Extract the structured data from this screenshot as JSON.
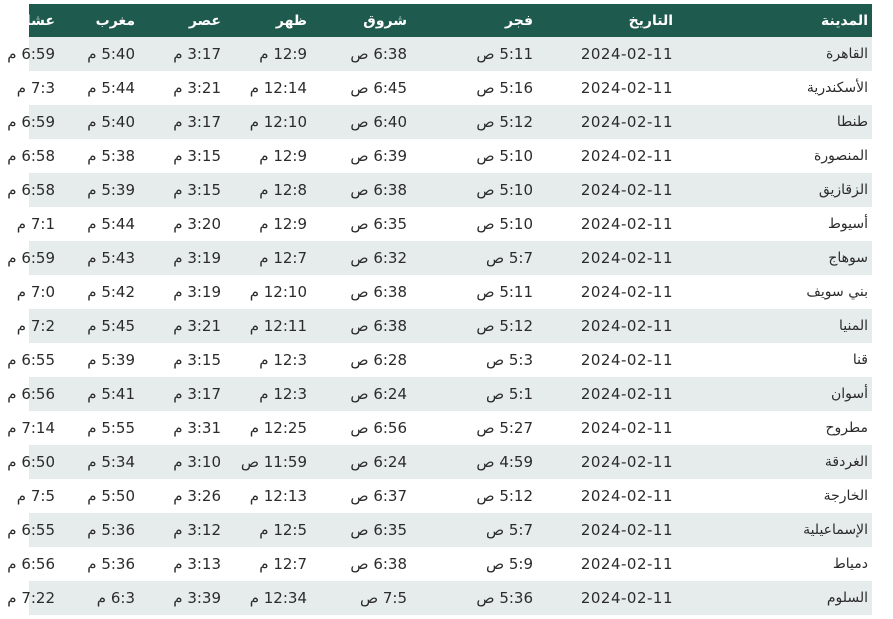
{
  "headers": {
    "city": "المدينة",
    "date": "التاريخ",
    "fajr": "فجر",
    "shuruq": "شروق",
    "dhuhr": "ظهر",
    "asr": "عصر",
    "maghrib": "مغرب",
    "isha": "عشاء"
  },
  "rows": [
    {
      "city": "القاهرة",
      "date": "2024-02-11",
      "fajr": "5:11 ص",
      "shuruq": "6:38 ص",
      "dhuhr": "12:9 م",
      "asr": "3:17 م",
      "maghrib": "5:40 م",
      "isha": "6:59 م"
    },
    {
      "city": "الأسكندرية",
      "date": "2024-02-11",
      "fajr": "5:16 ص",
      "shuruq": "6:45 ص",
      "dhuhr": "12:14 م",
      "asr": "3:21 م",
      "maghrib": "5:44 م",
      "isha": "7:3 م"
    },
    {
      "city": "طنطا",
      "date": "2024-02-11",
      "fajr": "5:12 ص",
      "shuruq": "6:40 ص",
      "dhuhr": "12:10 م",
      "asr": "3:17 م",
      "maghrib": "5:40 م",
      "isha": "6:59 م"
    },
    {
      "city": "المنصورة",
      "date": "2024-02-11",
      "fajr": "5:10 ص",
      "shuruq": "6:39 ص",
      "dhuhr": "12:9 م",
      "asr": "3:15 م",
      "maghrib": "5:38 م",
      "isha": "6:58 م"
    },
    {
      "city": "الزقازيق",
      "date": "2024-02-11",
      "fajr": "5:10 ص",
      "shuruq": "6:38 ص",
      "dhuhr": "12:8 م",
      "asr": "3:15 م",
      "maghrib": "5:39 م",
      "isha": "6:58 م"
    },
    {
      "city": "أسيوط",
      "date": "2024-02-11",
      "fajr": "5:10 ص",
      "shuruq": "6:35 ص",
      "dhuhr": "12:9 م",
      "asr": "3:20 م",
      "maghrib": "5:44 م",
      "isha": "7:1 م"
    },
    {
      "city": "سوهاج",
      "date": "2024-02-11",
      "fajr": "5:7 ص",
      "shuruq": "6:32 ص",
      "dhuhr": "12:7 م",
      "asr": "3:19 م",
      "maghrib": "5:43 م",
      "isha": "6:59 م"
    },
    {
      "city": "بني سويف",
      "date": "2024-02-11",
      "fajr": "5:11 ص",
      "shuruq": "6:38 ص",
      "dhuhr": "12:10 م",
      "asr": "3:19 م",
      "maghrib": "5:42 م",
      "isha": "7:0 م"
    },
    {
      "city": "المنيا",
      "date": "2024-02-11",
      "fajr": "5:12 ص",
      "shuruq": "6:38 ص",
      "dhuhr": "12:11 م",
      "asr": "3:21 م",
      "maghrib": "5:45 م",
      "isha": "7:2 م"
    },
    {
      "city": "قنا",
      "date": "2024-02-11",
      "fajr": "5:3 ص",
      "shuruq": "6:28 ص",
      "dhuhr": "12:3 م",
      "asr": "3:15 م",
      "maghrib": "5:39 م",
      "isha": "6:55 م"
    },
    {
      "city": "أسوان",
      "date": "2024-02-11",
      "fajr": "5:1 ص",
      "shuruq": "6:24 ص",
      "dhuhr": "12:3 م",
      "asr": "3:17 م",
      "maghrib": "5:41 م",
      "isha": "6:56 م"
    },
    {
      "city": "مطروح",
      "date": "2024-02-11",
      "fajr": "5:27 ص",
      "shuruq": "6:56 ص",
      "dhuhr": "12:25 م",
      "asr": "3:31 م",
      "maghrib": "5:55 م",
      "isha": "7:14 م"
    },
    {
      "city": "الغردقة",
      "date": "2024-02-11",
      "fajr": "4:59 ص",
      "shuruq": "6:24 ص",
      "dhuhr": "11:59 ص",
      "asr": "3:10 م",
      "maghrib": "5:34 م",
      "isha": "6:50 م"
    },
    {
      "city": "الخارجة",
      "date": "2024-02-11",
      "fajr": "5:12 ص",
      "shuruq": "6:37 ص",
      "dhuhr": "12:13 م",
      "asr": "3:26 م",
      "maghrib": "5:50 م",
      "isha": "7:5 م"
    },
    {
      "city": "الإسماعيلية",
      "date": "2024-02-11",
      "fajr": "5:7 ص",
      "shuruq": "6:35 ص",
      "dhuhr": "12:5 م",
      "asr": "3:12 م",
      "maghrib": "5:36 م",
      "isha": "6:55 م"
    },
    {
      "city": "دمياط",
      "date": "2024-02-11",
      "fajr": "5:9 ص",
      "shuruq": "6:38 ص",
      "dhuhr": "12:7 م",
      "asr": "3:13 م",
      "maghrib": "5:36 م",
      "isha": "6:56 م"
    },
    {
      "city": "السلوم",
      "date": "2024-02-11",
      "fajr": "5:36 ص",
      "shuruq": "7:5 ص",
      "dhuhr": "12:34 م",
      "asr": "3:39 م",
      "maghrib": "6:3 م",
      "isha": "7:22 م"
    }
  ],
  "colors": {
    "header_bg": "#1f5a4e",
    "header_text": "#ffffff",
    "row_alt_bg": "#e6ecec",
    "row_bg": "#ffffff"
  }
}
